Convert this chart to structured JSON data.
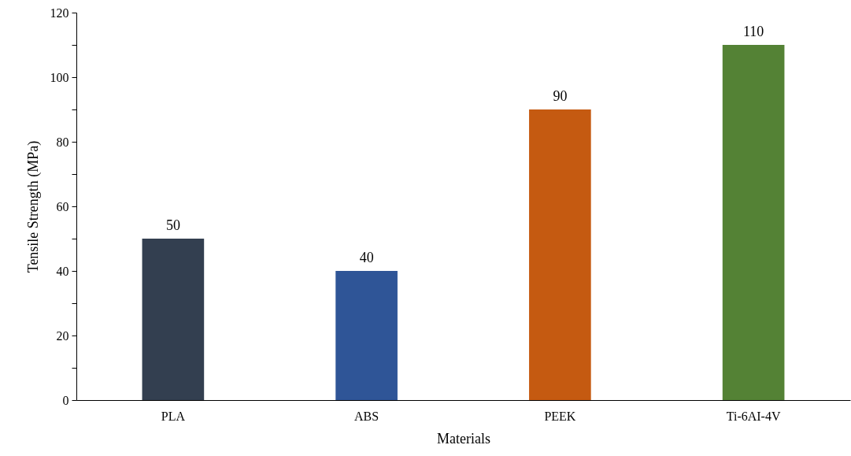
{
  "chart_data": {
    "type": "bar",
    "xlabel": "Materials",
    "ylabel": "Tensile Strength (MPa)",
    "categories": [
      "PLA",
      "ABS",
      "PEEK",
      "Ti-6AI-4V"
    ],
    "values": [
      50,
      40,
      90,
      110
    ],
    "colors": [
      "#333f50",
      "#2f5597",
      "#c55a11",
      "#548235"
    ],
    "ylim": [
      0,
      120
    ],
    "yticks": [
      0,
      {
        "value": 10,
        "label": null
      },
      20,
      {
        "value": 30,
        "label": null
      },
      40,
      {
        "value": 50,
        "label": null
      },
      60,
      {
        "value": 70,
        "label": null
      },
      80,
      {
        "value": 90,
        "label": null
      },
      100,
      {
        "value": 110,
        "label": null
      },
      120
    ],
    "data_labels": true,
    "grid": false
  }
}
